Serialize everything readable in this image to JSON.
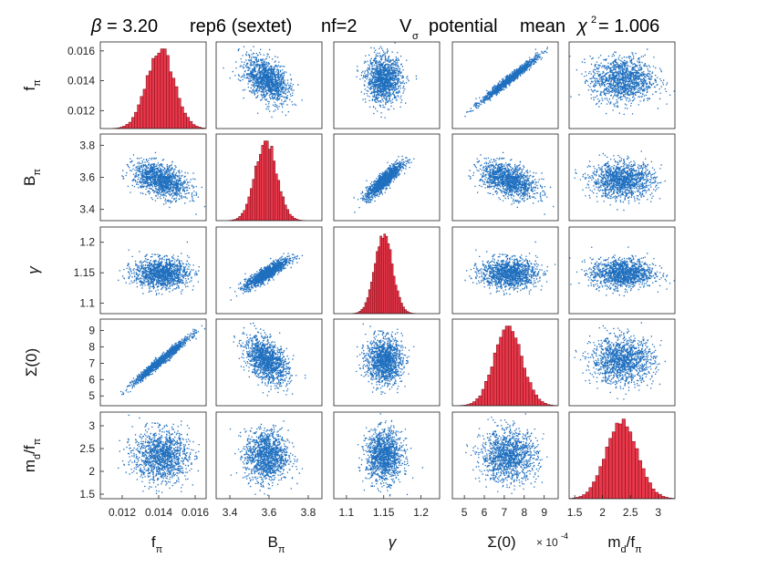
{
  "chart_data": {
    "type": "scatter-matrix",
    "title": {
      "beta_symbol": "β",
      "beta_eq": " = 3.20",
      "rep": "rep6 (sextet)",
      "nf": "nf=2",
      "V": "V",
      "V_sub": "σ",
      "potential": "potential",
      "mean": "mean",
      "chi": "χ",
      "chi_sup": "2",
      "chi_eq": " = 1.006"
    },
    "variables": [
      {
        "name": "fpi",
        "label": "f",
        "sub": "π",
        "ticks": [
          0.012,
          0.014,
          0.016
        ],
        "tick_labels": [
          "0.012",
          "0.014",
          "0.016"
        ],
        "range": [
          0.0108,
          0.0166
        ],
        "mean": 0.0141,
        "sd": 0.00075
      },
      {
        "name": "Bpi",
        "label": "B",
        "sub": "π",
        "ticks": [
          3.4,
          3.6,
          3.8
        ],
        "tick_labels": [
          "3.4",
          "3.6",
          "3.8"
        ],
        "range": [
          3.33,
          3.87
        ],
        "mean": 3.585,
        "sd": 0.055
      },
      {
        "name": "gamma",
        "label": "γ",
        "sub": "",
        "ticks": [
          1.1,
          1.15,
          1.2
        ],
        "tick_labels": [
          "1.1",
          "1.15",
          "1.2"
        ],
        "range": [
          1.083,
          1.225
        ],
        "mean": 1.15,
        "sd": 0.012
      },
      {
        "name": "sigma0",
        "label": "Σ(0)",
        "sub": "",
        "ticks": [
          5,
          6,
          7,
          8,
          9
        ],
        "tick_labels": [
          "5",
          "6",
          "7",
          "8",
          "9"
        ],
        "range": [
          4.4,
          9.7
        ],
        "mean": 7.2,
        "sd": 0.7,
        "scale_label": "× 10",
        "scale_exp": "-4"
      },
      {
        "name": "md_fpi",
        "label": "m",
        "sub": "d",
        "suffix": "/f",
        "suffix_sub": "π",
        "ticks": [
          1.5,
          2,
          2.5,
          3
        ],
        "tick_labels": [
          "1.5",
          "2",
          "2.5",
          "3"
        ],
        "range": [
          1.4,
          3.3
        ],
        "mean": 2.35,
        "sd": 0.28
      }
    ],
    "correlations": [
      [
        1.0,
        -0.45,
        0.0,
        0.98,
        0.0
      ],
      [
        -0.45,
        1.0,
        0.88,
        -0.45,
        0.0
      ],
      [
        0.0,
        0.88,
        1.0,
        0.0,
        0.0
      ],
      [
        0.98,
        -0.45,
        0.0,
        1.0,
        0.0
      ],
      [
        0.0,
        0.0,
        0.0,
        0.0,
        1.0
      ]
    ],
    "diagonal": "histogram",
    "off_diagonal": "scatter",
    "colors": {
      "scatter": "#1f6fbf",
      "hist_fill": "#e8384a",
      "hist_edge": "#7a0b18",
      "axis": "#222222"
    }
  }
}
